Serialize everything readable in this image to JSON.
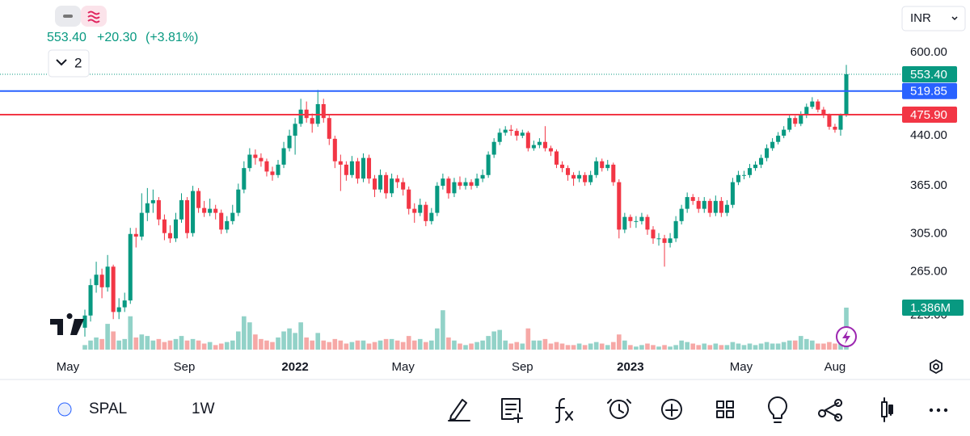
{
  "header": {
    "price": "553.40",
    "change": "+20.30",
    "change_pct": "(+3.81%)",
    "indicators_count": "2",
    "currency": "INR"
  },
  "toolbar": {
    "symbol": "SPAL",
    "interval": "1W"
  },
  "chart_data": {
    "type": "candlestick",
    "log_scale": true,
    "up_color": "#089981",
    "down_color": "#f23645",
    "volume_up_color": "#92d2c8",
    "volume_down_color": "#f6a8a6",
    "ylim": [
      194,
      730
    ],
    "yticks": [
      {
        "value": 600,
        "label": "600.00"
      },
      {
        "value": 440,
        "label": "440.00"
      },
      {
        "value": 365,
        "label": "365.00"
      },
      {
        "value": 305,
        "label": "305.00"
      },
      {
        "value": 265,
        "label": "265.00"
      },
      {
        "value": 225,
        "label": "225.00"
      }
    ],
    "xticks": [
      {
        "value": -3,
        "label": "May"
      },
      {
        "value": 17.5,
        "label": "Sep"
      },
      {
        "value": 37,
        "label": "2022"
      },
      {
        "value": 56,
        "label": "May"
      },
      {
        "value": 77,
        "label": "Sep"
      },
      {
        "value": 96,
        "label": "2023"
      },
      {
        "value": 115.5,
        "label": "May"
      },
      {
        "value": 132,
        "label": "Aug"
      }
    ],
    "price_lines": [
      {
        "value": 553.4,
        "label": "553.40",
        "color": "#089981",
        "style": "dotted"
      },
      {
        "value": 519.85,
        "label": "519.85",
        "color": "#2962ff",
        "style": "solid"
      },
      {
        "value": 475.9,
        "label": "475.90",
        "color": "#f23645",
        "style": "solid"
      }
    ],
    "volume_label": "1.386M",
    "candles": [
      [
        215,
        230,
        208,
        225
      ],
      [
        225,
        258,
        220,
        252
      ],
      [
        252,
        275,
        245,
        262
      ],
      [
        262,
        268,
        240,
        250
      ],
      [
        250,
        282,
        246,
        270
      ],
      [
        270,
        272,
        222,
        228
      ],
      [
        228,
        240,
        222,
        232
      ],
      [
        232,
        245,
        228,
        238
      ],
      [
        238,
        312,
        235,
        305
      ],
      [
        305,
        312,
        290,
        302
      ],
      [
        302,
        355,
        298,
        330
      ],
      [
        330,
        362,
        320,
        342
      ],
      [
        342,
        360,
        330,
        346
      ],
      [
        346,
        350,
        315,
        322
      ],
      [
        322,
        328,
        298,
        306
      ],
      [
        306,
        315,
        295,
        300
      ],
      [
        300,
        330,
        296,
        322
      ],
      [
        322,
        355,
        318,
        346
      ],
      [
        346,
        350,
        300,
        306
      ],
      [
        306,
        365,
        302,
        358
      ],
      [
        358,
        362,
        330,
        336
      ],
      [
        336,
        345,
        325,
        330
      ],
      [
        330,
        348,
        326,
        335
      ],
      [
        335,
        340,
        322,
        330
      ],
      [
        330,
        334,
        305,
        310
      ],
      [
        310,
        326,
        306,
        320
      ],
      [
        320,
        340,
        316,
        330
      ],
      [
        330,
        368,
        326,
        360
      ],
      [
        360,
        400,
        355,
        390
      ],
      [
        390,
        420,
        385,
        410
      ],
      [
        410,
        418,
        395,
        405
      ],
      [
        405,
        412,
        392,
        400
      ],
      [
        400,
        404,
        378,
        385
      ],
      [
        385,
        392,
        372,
        380
      ],
      [
        380,
        402,
        376,
        395
      ],
      [
        395,
        430,
        390,
        420
      ],
      [
        420,
        450,
        415,
        440
      ],
      [
        440,
        470,
        410,
        460
      ],
      [
        460,
        505,
        455,
        485
      ],
      [
        485,
        500,
        462,
        470
      ],
      [
        470,
        478,
        445,
        460
      ],
      [
        460,
        522,
        455,
        495
      ],
      [
        495,
        505,
        462,
        470
      ],
      [
        470,
        475,
        425,
        435
      ],
      [
        435,
        440,
        390,
        400
      ],
      [
        400,
        410,
        358,
        395
      ],
      [
        395,
        400,
        372,
        380
      ],
      [
        380,
        408,
        376,
        400
      ],
      [
        400,
        405,
        368,
        375
      ],
      [
        375,
        412,
        370,
        405
      ],
      [
        405,
        410,
        368,
        375
      ],
      [
        375,
        380,
        350,
        360
      ],
      [
        360,
        388,
        356,
        380
      ],
      [
        380,
        384,
        348,
        355
      ],
      [
        355,
        382,
        350,
        375
      ],
      [
        375,
        380,
        362,
        370
      ],
      [
        370,
        376,
        352,
        360
      ],
      [
        360,
        364,
        328,
        335
      ],
      [
        335,
        342,
        318,
        330
      ],
      [
        330,
        348,
        326,
        340
      ],
      [
        340,
        344,
        314,
        320
      ],
      [
        320,
        336,
        316,
        330
      ],
      [
        330,
        370,
        326,
        365
      ],
      [
        365,
        382,
        360,
        375
      ],
      [
        375,
        378,
        348,
        355
      ],
      [
        355,
        376,
        350,
        370
      ],
      [
        370,
        378,
        360,
        365
      ],
      [
        365,
        376,
        360,
        370
      ],
      [
        370,
        374,
        360,
        365
      ],
      [
        365,
        382,
        362,
        375
      ],
      [
        375,
        388,
        370,
        380
      ],
      [
        380,
        415,
        376,
        410
      ],
      [
        410,
        436,
        405,
        430
      ],
      [
        430,
        452,
        425,
        445
      ],
      [
        445,
        456,
        440,
        450
      ],
      [
        450,
        458,
        440,
        448
      ],
      [
        448,
        452,
        432,
        440
      ],
      [
        440,
        450,
        436,
        445
      ],
      [
        445,
        448,
        415,
        420
      ],
      [
        420,
        432,
        416,
        425
      ],
      [
        425,
        436,
        420,
        430
      ],
      [
        430,
        456,
        415,
        420
      ],
      [
        420,
        424,
        408,
        415
      ],
      [
        415,
        418,
        390,
        395
      ],
      [
        395,
        400,
        384,
        390
      ],
      [
        390,
        394,
        372,
        380
      ],
      [
        380,
        384,
        365,
        375
      ],
      [
        375,
        386,
        370,
        380
      ],
      [
        380,
        384,
        365,
        370
      ],
      [
        370,
        386,
        366,
        380
      ],
      [
        380,
        406,
        376,
        400
      ],
      [
        400,
        404,
        385,
        390
      ],
      [
        390,
        402,
        386,
        395
      ],
      [
        395,
        398,
        365,
        370
      ],
      [
        370,
        374,
        300,
        310
      ],
      [
        310,
        330,
        306,
        325
      ],
      [
        325,
        328,
        312,
        320
      ],
      [
        320,
        326,
        312,
        320
      ],
      [
        320,
        330,
        316,
        325
      ],
      [
        325,
        328,
        304,
        310
      ],
      [
        310,
        314,
        294,
        300
      ],
      [
        300,
        306,
        292,
        300
      ],
      [
        300,
        304,
        270,
        295
      ],
      [
        295,
        306,
        290,
        300
      ],
      [
        300,
        326,
        296,
        320
      ],
      [
        320,
        340,
        316,
        335
      ],
      [
        335,
        356,
        330,
        350
      ],
      [
        350,
        354,
        340,
        345
      ],
      [
        345,
        350,
        330,
        335
      ],
      [
        335,
        350,
        330,
        345
      ],
      [
        345,
        348,
        325,
        330
      ],
      [
        330,
        352,
        326,
        345
      ],
      [
        345,
        350,
        325,
        330
      ],
      [
        330,
        346,
        326,
        340
      ],
      [
        340,
        376,
        336,
        370
      ],
      [
        370,
        386,
        366,
        380
      ],
      [
        380,
        386,
        374,
        380
      ],
      [
        380,
        396,
        376,
        390
      ],
      [
        390,
        400,
        386,
        395
      ],
      [
        395,
        410,
        390,
        405
      ],
      [
        405,
        426,
        400,
        420
      ],
      [
        420,
        436,
        416,
        430
      ],
      [
        430,
        446,
        426,
        440
      ],
      [
        440,
        456,
        436,
        450
      ],
      [
        450,
        476,
        446,
        470
      ],
      [
        470,
        474,
        455,
        460
      ],
      [
        460,
        482,
        456,
        475
      ],
      [
        475,
        496,
        470,
        490
      ],
      [
        490,
        508,
        486,
        500
      ],
      [
        500,
        504,
        480,
        485
      ],
      [
        485,
        490,
        470,
        475
      ],
      [
        475,
        478,
        450,
        455
      ],
      [
        455,
        460,
        445,
        450
      ],
      [
        450,
        478,
        440,
        475
      ],
      [
        475,
        573,
        472,
        553.4
      ]
    ],
    "volume": [
      0.15,
      0.3,
      0.4,
      0.35,
      0.85,
      0.6,
      0.3,
      0.35,
      1.1,
      0.4,
      0.5,
      0.45,
      0.3,
      0.35,
      0.25,
      0.3,
      0.35,
      0.45,
      0.3,
      0.35,
      0.3,
      0.2,
      0.25,
      0.15,
      0.2,
      0.25,
      0.3,
      0.6,
      1.1,
      0.9,
      0.5,
      0.35,
      0.3,
      0.25,
      0.4,
      0.6,
      0.7,
      0.55,
      0.9,
      0.4,
      0.3,
      0.55,
      0.3,
      0.25,
      0.35,
      0.3,
      0.2,
      0.25,
      0.3,
      0.3,
      0.2,
      0.25,
      0.3,
      0.35,
      0.35,
      0.3,
      0.25,
      0.45,
      0.3,
      0.35,
      0.25,
      0.3,
      0.7,
      1.3,
      0.4,
      0.3,
      0.2,
      0.15,
      0.2,
      0.25,
      0.3,
      0.45,
      0.6,
      0.65,
      0.3,
      0.2,
      0.25,
      0.2,
      0.7,
      0.3,
      0.3,
      0.35,
      0.2,
      0.25,
      0.2,
      0.15,
      0.15,
      0.2,
      0.15,
      0.2,
      0.25,
      0.2,
      0.15,
      0.25,
      0.5,
      0.3,
      0.15,
      0.1,
      0.15,
      0.2,
      0.15,
      0.1,
      0.15,
      0.1,
      0.15,
      0.3,
      0.25,
      0.2,
      0.15,
      0.2,
      0.15,
      0.2,
      0.15,
      0.15,
      0.25,
      0.2,
      0.15,
      0.2,
      0.15,
      0.2,
      0.25,
      0.2,
      0.2,
      0.25,
      0.3,
      0.3,
      0.45,
      0.35,
      0.3,
      0.2,
      0.2,
      0.25,
      0.2,
      0.3,
      1.386
    ]
  }
}
